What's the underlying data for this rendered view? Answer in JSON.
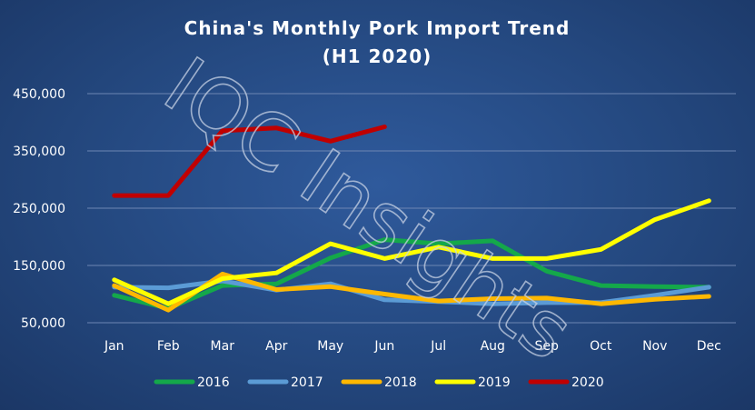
{
  "chart_data": {
    "type": "line",
    "title": [
      "China's Monthly Pork Import Trend",
      "(H1 2020)"
    ],
    "watermark": "IQC Insights",
    "categories": [
      "Jan",
      "Feb",
      "Mar",
      "Apr",
      "May",
      "Jun",
      "Jul",
      "Aug",
      "Sep",
      "Oct",
      "Nov",
      "Dec"
    ],
    "ylim": [
      50000,
      450000
    ],
    "yticks": [
      50000,
      150000,
      250000,
      350000,
      450000
    ],
    "ytick_labels": [
      "50,000",
      "150,000",
      "250,000",
      "350,000",
      "450,000"
    ],
    "grid": true,
    "legend_position": "bottom",
    "series": [
      {
        "name": "2016",
        "color": "#14a84a",
        "values": [
          98000,
          75000,
          115000,
          118000,
          163000,
          195000,
          188000,
          193000,
          140000,
          115000,
          113000,
          112000
        ]
      },
      {
        "name": "2017",
        "color": "#5b9bd5",
        "values": [
          112000,
          111000,
          123000,
          107000,
          118000,
          90000,
          87000,
          83000,
          85000,
          85000,
          98000,
          112000
        ]
      },
      {
        "name": "2018",
        "color": "#ffb800",
        "values": [
          115000,
          72000,
          135000,
          108000,
          113000,
          100000,
          88000,
          92000,
          93000,
          83000,
          91000,
          96000
        ]
      },
      {
        "name": "2019",
        "color": "#ffff00",
        "values": [
          125000,
          83000,
          127000,
          137000,
          188000,
          162000,
          182000,
          162000,
          162000,
          178000,
          230000,
          263000
        ]
      },
      {
        "name": "2020",
        "color": "#c00000",
        "values": [
          272000,
          272000,
          385000,
          390000,
          367000,
          392000,
          null,
          null,
          null,
          null,
          null,
          null
        ]
      }
    ]
  }
}
